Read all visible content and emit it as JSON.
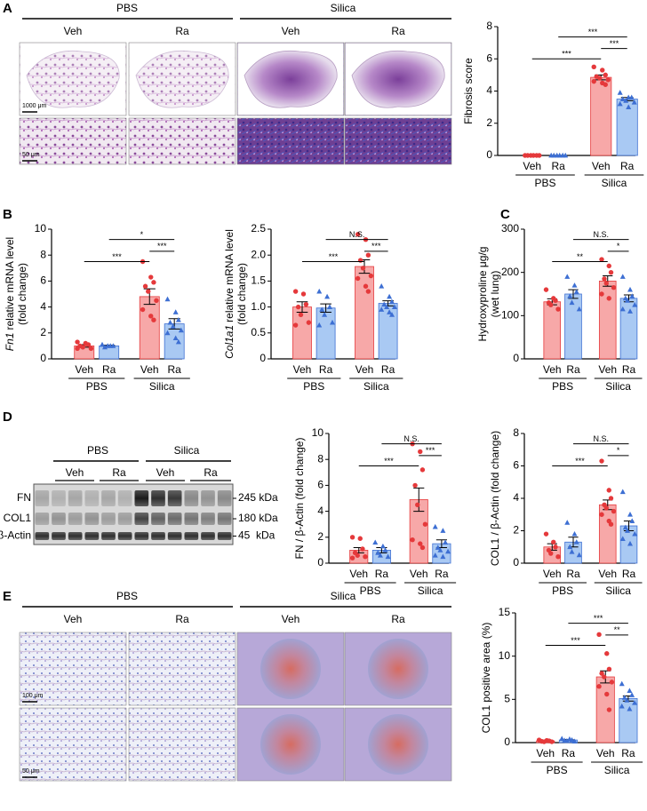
{
  "panel_letters": [
    "A",
    "B",
    "C",
    "D",
    "E"
  ],
  "histology_A": {
    "groups": [
      "PBS",
      "Silica"
    ],
    "subgroups": [
      "Veh",
      "Ra",
      "Veh",
      "Ra"
    ],
    "scale_bars": [
      "1000 μm",
      "50 μm"
    ]
  },
  "histology_E": {
    "groups": [
      "PBS",
      "Silica"
    ],
    "subgroups": [
      "Veh",
      "Ra",
      "Veh",
      "Ra"
    ],
    "scale_bars": [
      "100 μm",
      "50 μm"
    ]
  },
  "blot": {
    "groups": [
      "PBS",
      "Silica"
    ],
    "subgroups": [
      "Veh",
      "Ra",
      "Veh",
      "Ra"
    ],
    "bands": [
      "FN",
      "COL1",
      "β-Actin"
    ],
    "sizes": [
      "245 kDa",
      "180 kDa",
      "45  kDa"
    ]
  },
  "chart_data": [
    {
      "type": "bar",
      "ylabel": [
        "Fibrosis score"
      ],
      "categories": [
        "Veh",
        "Ra",
        "Veh",
        "Ra"
      ],
      "groups": [
        "PBS",
        "Silica"
      ],
      "values": [
        0,
        0,
        4.85,
        3.5
      ],
      "errors": [
        0,
        0,
        0.15,
        0.1
      ],
      "points": [
        [
          0,
          0,
          0,
          0,
          0,
          0
        ],
        [
          0,
          0,
          0,
          0,
          0,
          0
        ],
        [
          5.5,
          5.3,
          5.0,
          4.9,
          4.8,
          4.7,
          4.6,
          4.5,
          4.4
        ],
        [
          3.9,
          3.6,
          3.6,
          3.5,
          3.4,
          3.3,
          3.2,
          3.0
        ]
      ],
      "bar_colors": [
        "#f7a8a8",
        "#a9c9f3",
        "#f7a8a8",
        "#a9c9f3"
      ],
      "point_colors": [
        "#e5393b",
        "#3d6fd3",
        "#e5393b",
        "#3d6fd3"
      ],
      "markers": [
        "circle",
        "triangle",
        "circle",
        "triangle"
      ],
      "ylim": [
        0,
        8
      ],
      "yticks": [
        0,
        2,
        4,
        6,
        8
      ],
      "comparisons": [
        {
          "pair": [
            1,
            3
          ],
          "label": "***"
        },
        {
          "pair": [
            2,
            3
          ],
          "label": "***"
        },
        {
          "pair": [
            0,
            2
          ],
          "label": "***"
        }
      ]
    },
    {
      "type": "bar",
      "ylabel_gene": "Fn1",
      "ylabel": [
        "relative mRNA level",
        "(fold change)"
      ],
      "categories": [
        "Veh",
        "Ra",
        "Veh",
        "Ra"
      ],
      "groups": [
        "PBS",
        "Silica"
      ],
      "values": [
        1.0,
        1.0,
        4.8,
        2.7
      ],
      "errors": [
        0.1,
        0.05,
        0.6,
        0.4
      ],
      "points": [
        [
          1.3,
          1.2,
          1.1,
          1.0,
          0.9,
          0.8,
          0.8
        ],
        [
          1.1,
          1.0,
          1.0,
          0.9,
          1.0
        ],
        [
          7.5,
          6.3,
          5.9,
          5.6,
          5.2,
          4.5,
          3.8,
          3.3,
          3.0
        ],
        [
          4.6,
          3.6,
          3.0,
          2.8,
          2.5,
          2.2,
          2.0,
          1.6,
          1.3
        ]
      ],
      "bar_colors": [
        "#f7a8a8",
        "#a9c9f3",
        "#f7a8a8",
        "#a9c9f3"
      ],
      "point_colors": [
        "#e5393b",
        "#3d6fd3",
        "#e5393b",
        "#3d6fd3"
      ],
      "markers": [
        "circle",
        "triangle",
        "circle",
        "triangle"
      ],
      "ylim": [
        0,
        10
      ],
      "yticks": [
        0,
        2,
        4,
        6,
        8,
        10
      ],
      "comparisons": [
        {
          "pair": [
            1,
            3
          ],
          "label": "*"
        },
        {
          "pair": [
            2,
            3
          ],
          "label": "***"
        },
        {
          "pair": [
            0,
            2
          ],
          "label": "***"
        }
      ]
    },
    {
      "type": "bar",
      "ylabel_gene": "Col1a1",
      "ylabel": [
        "relative mRNA level",
        "(fold change)"
      ],
      "categories": [
        "Veh",
        "Ra",
        "Veh",
        "Ra"
      ],
      "groups": [
        "PBS",
        "Silica"
      ],
      "values": [
        1.0,
        0.98,
        1.78,
        1.07
      ],
      "errors": [
        0.1,
        0.08,
        0.13,
        0.05
      ],
      "points": [
        [
          1.3,
          1.25,
          1.05,
          1.0,
          0.85,
          0.7,
          0.65
        ],
        [
          1.3,
          1.2,
          1.0,
          0.95,
          0.85,
          0.7,
          0.65
        ],
        [
          2.4,
          2.3,
          2.0,
          1.9,
          1.75,
          1.6,
          1.55,
          1.4,
          1.3
        ],
        [
          1.4,
          1.2,
          1.1,
          1.05,
          1.0,
          1.0,
          0.95,
          0.9,
          0.85
        ]
      ],
      "bar_colors": [
        "#f7a8a8",
        "#a9c9f3",
        "#f7a8a8",
        "#a9c9f3"
      ],
      "point_colors": [
        "#e5393b",
        "#3d6fd3",
        "#e5393b",
        "#3d6fd3"
      ],
      "markers": [
        "circle",
        "triangle",
        "circle",
        "triangle"
      ],
      "ylim": [
        0,
        2.5
      ],
      "yticks": [
        0,
        {
          "value": 0.5,
          "label": "0.5"
        },
        {
          "value": 1,
          "label": "1.0"
        },
        {
          "value": 1.5,
          "label": "1.5"
        },
        {
          "value": 2,
          "label": "2.0"
        },
        {
          "value": 2.5,
          "label": "2.5"
        }
      ],
      "comparisons": [
        {
          "pair": [
            1,
            3
          ],
          "label": "N.S."
        },
        {
          "pair": [
            2,
            3
          ],
          "label": "***"
        },
        {
          "pair": [
            0,
            2
          ],
          "label": "***"
        }
      ]
    },
    {
      "type": "bar",
      "ylabel": [
        "Hydroxyproline μg/g",
        "(wet lung)"
      ],
      "categories": [
        "Veh",
        "Ra",
        "Veh",
        "Ra"
      ],
      "groups": [
        "PBS",
        "Silica"
      ],
      "values": [
        132,
        150,
        180,
        140
      ],
      "errors": [
        7,
        10,
        12,
        8
      ],
      "points": [
        [
          160,
          140,
          135,
          130,
          125,
          115
        ],
        [
          190,
          170,
          155,
          145,
          130,
          115
        ],
        [
          230,
          215,
          200,
          185,
          175,
          165,
          150,
          140
        ],
        [
          190,
          160,
          145,
          140,
          135,
          125,
          115,
          110
        ]
      ],
      "bar_colors": [
        "#f7a8a8",
        "#a9c9f3",
        "#f7a8a8",
        "#a9c9f3"
      ],
      "point_colors": [
        "#e5393b",
        "#3d6fd3",
        "#e5393b",
        "#3d6fd3"
      ],
      "markers": [
        "circle",
        "triangle",
        "circle",
        "triangle"
      ],
      "ylim": [
        0,
        300
      ],
      "yticks": [
        0,
        100,
        200,
        300
      ],
      "comparisons": [
        {
          "pair": [
            1,
            3
          ],
          "label": "N.S."
        },
        {
          "pair": [
            2,
            3
          ],
          "label": "*"
        },
        {
          "pair": [
            0,
            2
          ],
          "label": "**"
        }
      ]
    },
    {
      "type": "bar",
      "ylabel": [
        "FN / β-Actin (fold change)"
      ],
      "categories": [
        "Veh",
        "Ra",
        "Veh",
        "Ra"
      ],
      "groups": [
        "PBS",
        "Silica"
      ],
      "values": [
        1.0,
        1.0,
        4.9,
        1.5
      ],
      "errors": [
        0.2,
        0.2,
        0.9,
        0.3
      ],
      "points": [
        [
          2.0,
          1.9,
          1.1,
          0.8,
          0.6,
          0.5,
          0.4
        ],
        [
          1.6,
          1.3,
          1.0,
          0.8,
          0.6,
          0.5
        ],
        [
          9.2,
          8.6,
          7.2,
          6.0,
          4.5,
          3.0,
          1.8,
          1.5,
          1.2
        ],
        [
          2.8,
          2.5,
          1.6,
          1.2,
          1.0,
          0.9,
          0.6,
          0.5
        ]
      ],
      "bar_colors": [
        "#f7a8a8",
        "#a9c9f3",
        "#f7a8a8",
        "#a9c9f3"
      ],
      "point_colors": [
        "#e5393b",
        "#3d6fd3",
        "#e5393b",
        "#3d6fd3"
      ],
      "markers": [
        "circle",
        "triangle",
        "circle",
        "triangle"
      ],
      "ylim": [
        0,
        10
      ],
      "yticks": [
        0,
        2,
        4,
        6,
        8,
        10
      ],
      "comparisons": [
        {
          "pair": [
            1,
            3
          ],
          "label": "N.S."
        },
        {
          "pair": [
            2,
            3
          ],
          "label": "***"
        },
        {
          "pair": [
            0,
            2
          ],
          "label": "***"
        }
      ]
    },
    {
      "type": "bar",
      "ylabel": [
        "COL1 / β-Actin (fold change)"
      ],
      "categories": [
        "Veh",
        "Ra",
        "Veh",
        "Ra"
      ],
      "groups": [
        "PBS",
        "Silica"
      ],
      "values": [
        1.0,
        1.3,
        3.6,
        2.3
      ],
      "errors": [
        0.2,
        0.3,
        0.3,
        0.3
      ],
      "points": [
        [
          1.8,
          1.3,
          1.0,
          0.8,
          0.6,
          0.4
        ],
        [
          2.5,
          1.8,
          1.3,
          1.0,
          0.7,
          0.5
        ],
        [
          6.3,
          4.5,
          4.0,
          3.6,
          3.4,
          3.2,
          3.0,
          2.6,
          2.4
        ],
        [
          4.4,
          3.0,
          2.6,
          2.2,
          2.0,
          1.8,
          1.5,
          1.2
        ]
      ],
      "bar_colors": [
        "#f7a8a8",
        "#a9c9f3",
        "#f7a8a8",
        "#a9c9f3"
      ],
      "point_colors": [
        "#e5393b",
        "#3d6fd3",
        "#e5393b",
        "#3d6fd3"
      ],
      "markers": [
        "circle",
        "triangle",
        "circle",
        "triangle"
      ],
      "ylim": [
        0,
        8
      ],
      "yticks": [
        0,
        2,
        4,
        6,
        8
      ],
      "comparisons": [
        {
          "pair": [
            1,
            3
          ],
          "label": "N.S."
        },
        {
          "pair": [
            2,
            3
          ],
          "label": "*"
        },
        {
          "pair": [
            0,
            2
          ],
          "label": "***"
        }
      ]
    },
    {
      "type": "bar",
      "ylabel": [
        "COL1 positive area (%)"
      ],
      "categories": [
        "Veh",
        "Ra",
        "Veh",
        "Ra"
      ],
      "groups": [
        "PBS",
        "Silica"
      ],
      "values": [
        0.2,
        0.3,
        7.6,
        5.1
      ],
      "errors": [
        0.05,
        0.05,
        0.7,
        0.3
      ],
      "points": [
        [
          0.3,
          0.25,
          0.2,
          0.15,
          0.1,
          0.1
        ],
        [
          0.45,
          0.4,
          0.3,
          0.25,
          0.2,
          0.15
        ],
        [
          12.5,
          10.3,
          8.5,
          8.0,
          7.6,
          7.0,
          6.5,
          5.6,
          3.8
        ],
        [
          6.8,
          6.0,
          5.5,
          5.2,
          4.9,
          4.6,
          4.2,
          3.9
        ]
      ],
      "bar_colors": [
        "#f7a8a8",
        "#a9c9f3",
        "#f7a8a8",
        "#a9c9f3"
      ],
      "point_colors": [
        "#e5393b",
        "#3d6fd3",
        "#e5393b",
        "#3d6fd3"
      ],
      "markers": [
        "circle",
        "triangle",
        "circle",
        "triangle"
      ],
      "ylim": [
        0,
        15
      ],
      "yticks": [
        0,
        5,
        10,
        15
      ],
      "comparisons": [
        {
          "pair": [
            1,
            3
          ],
          "label": "***"
        },
        {
          "pair": [
            2,
            3
          ],
          "label": "**"
        },
        {
          "pair": [
            0,
            2
          ],
          "label": "***"
        }
      ]
    }
  ]
}
